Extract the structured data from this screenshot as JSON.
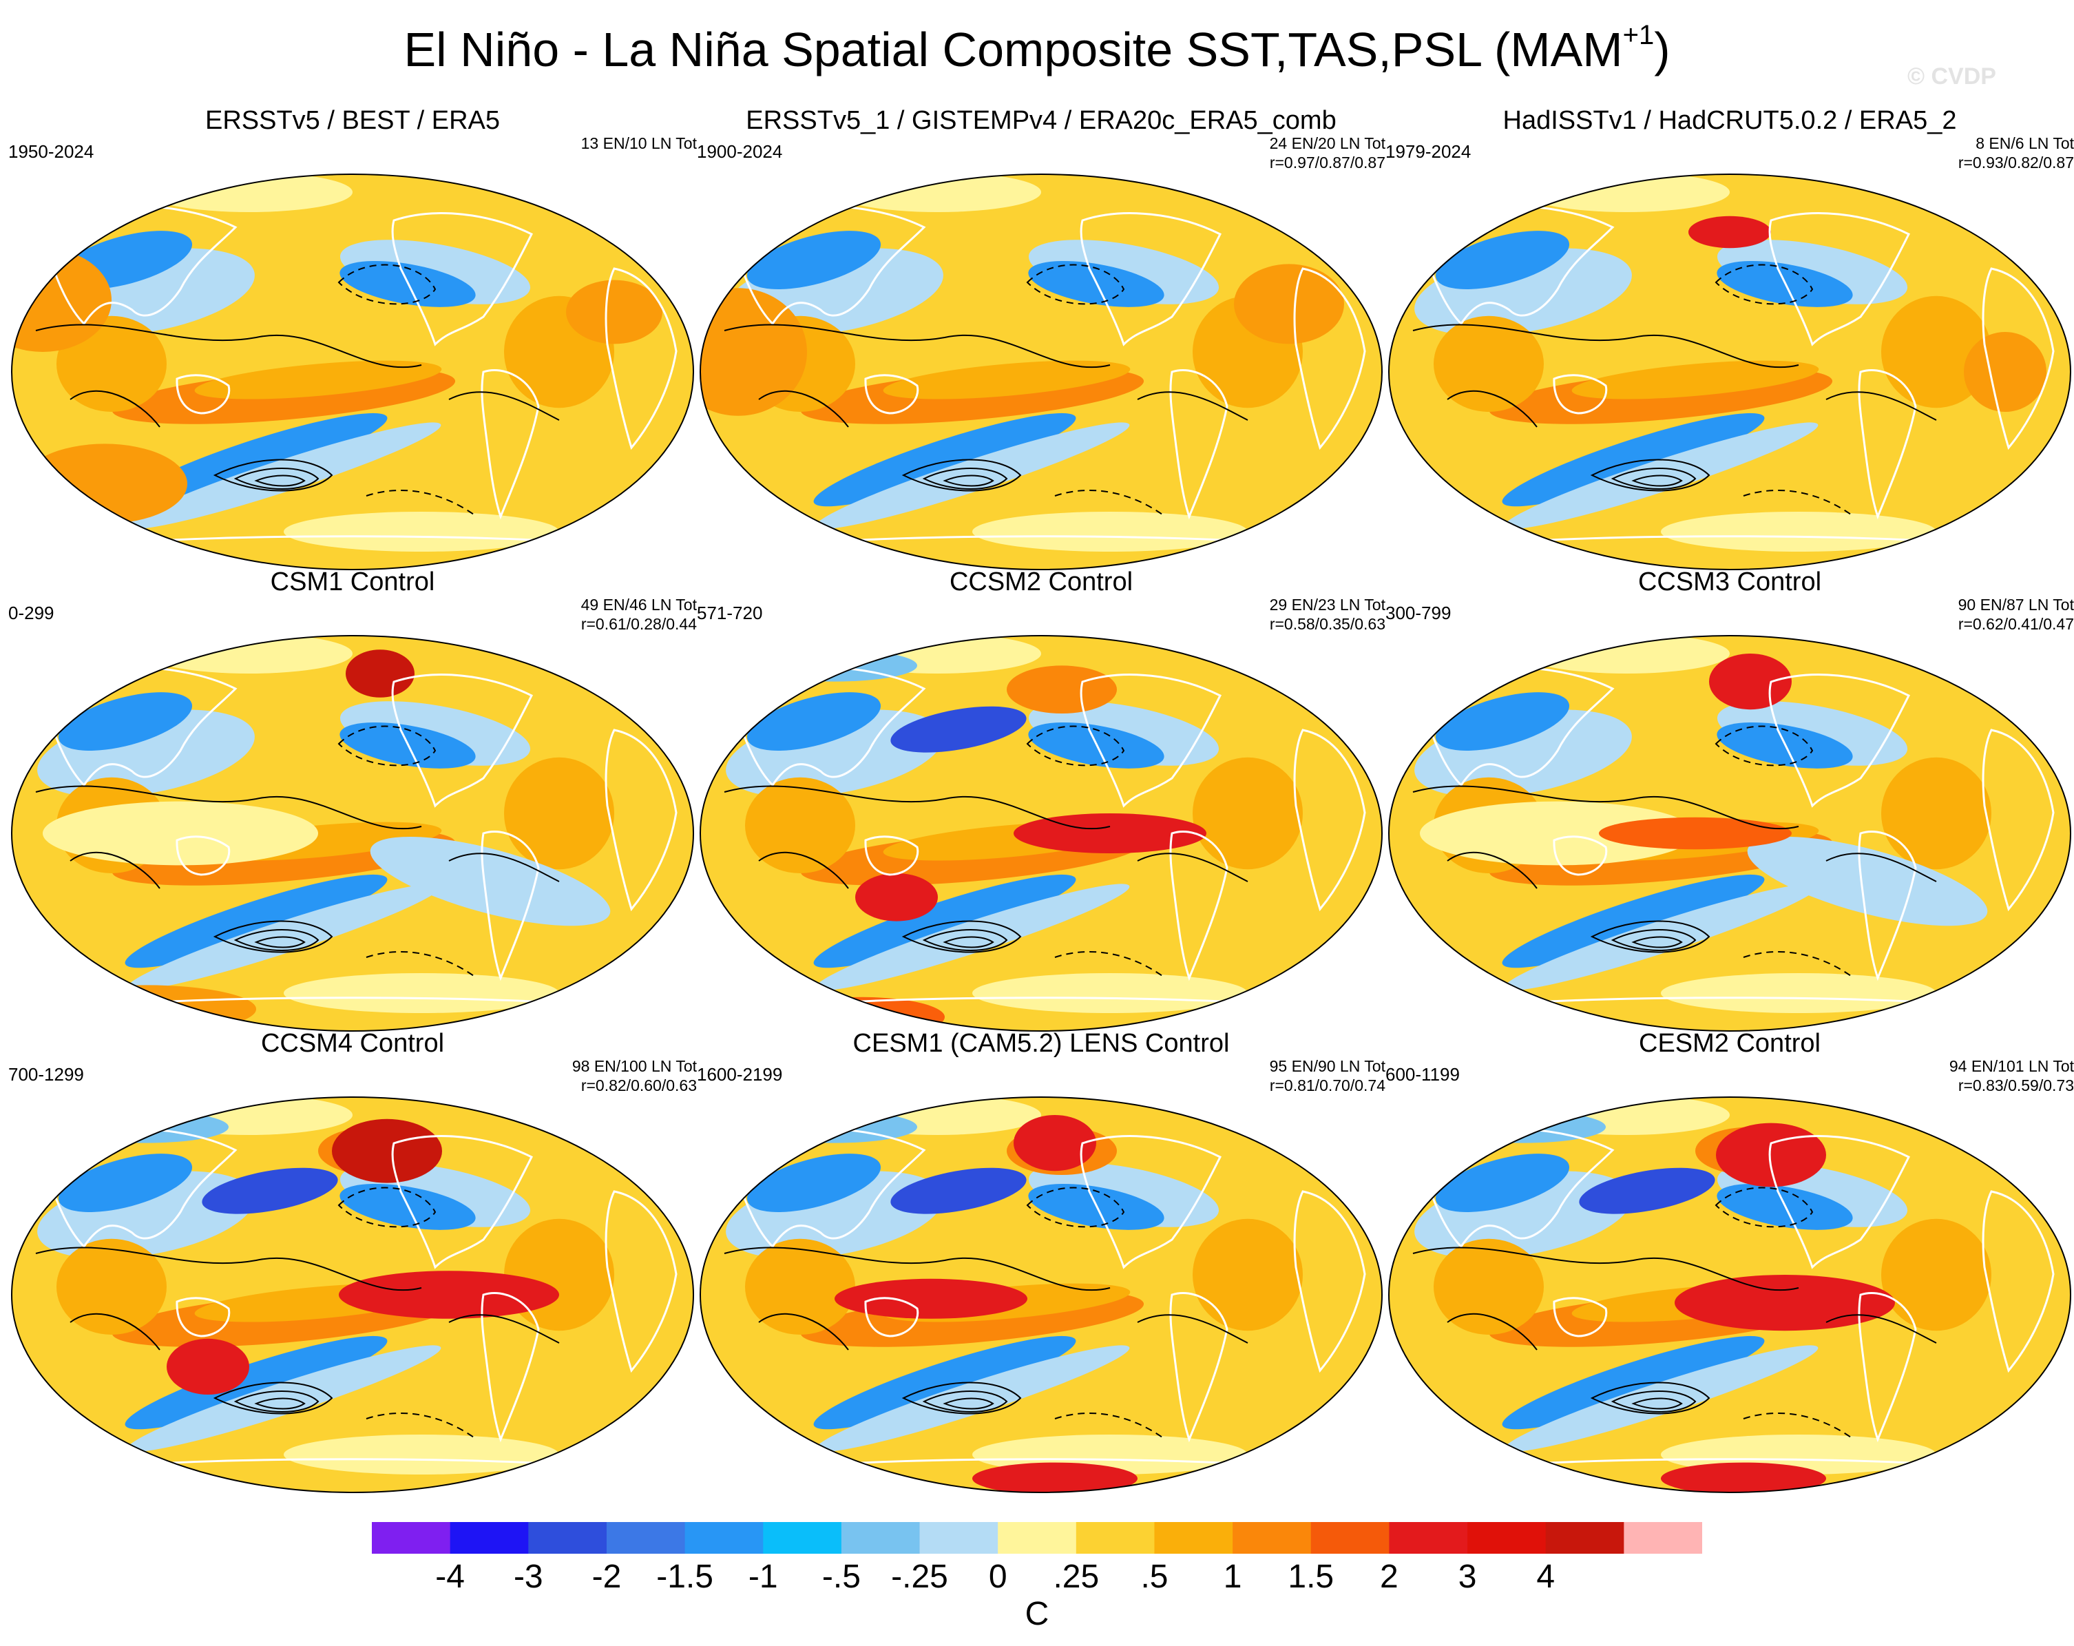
{
  "figure": {
    "title_main": "El Niño - La Niña Spatial Composite SST,TAS,PSL (MAM",
    "title_sup": "+1",
    "title_close": ")",
    "watermark": "© CVDP"
  },
  "panels": [
    {
      "title": "ERSSTv5 / BEST / ERA5",
      "years": "1950-2024",
      "count": "13 EN/10 LN Tot",
      "corr": "",
      "pattern": "obs",
      "warm_anchors": [
        [
          0.05,
          0.32,
          0.1,
          0.13,
          "#fa9b0a"
        ],
        [
          0.14,
          0.78,
          0.12,
          0.1,
          "#fa9b0a"
        ],
        [
          0.88,
          0.35,
          0.07,
          0.08,
          "#fa9b0a"
        ]
      ]
    },
    {
      "title": "ERSSTv5_1 / GISTEMPv4 / ERA20c_ERA5_comb",
      "years": "1900-2024",
      "count": "24 EN/20 LN Tot",
      "corr": "r=0.97/0.87/0.87",
      "pattern": "obs",
      "warm_anchors": [
        [
          0.06,
          0.45,
          0.1,
          0.16,
          "#fa9b0a"
        ],
        [
          0.86,
          0.33,
          0.08,
          0.1,
          "#fa9b0a"
        ]
      ]
    },
    {
      "title": "HadISSTv1 / HadCRUT5.0.2 / ERA5_2",
      "years": "1979-2024",
      "count": "8 EN/6 LN Tot",
      "corr": "r=0.93/0.82/0.87",
      "pattern": "obs",
      "warm_anchors": [
        [
          0.5,
          0.15,
          0.06,
          0.04,
          "#e31a1c"
        ],
        [
          0.9,
          0.5,
          0.06,
          0.1,
          "#fa9b0a"
        ]
      ]
    },
    {
      "title": "CSM1 Control",
      "years": "0-299",
      "count": "49 EN/46 LN Tot",
      "corr": "r=0.61/0.28/0.44",
      "pattern": "weak",
      "warm_anchors": [
        [
          0.54,
          0.1,
          0.05,
          0.06,
          "#c8170c"
        ],
        [
          0.2,
          0.94,
          0.16,
          0.06,
          "#fa9b0a"
        ]
      ]
    },
    {
      "title": "CCSM2 Control",
      "years": "571-720",
      "count": "29 EN/23 LN Tot",
      "corr": "r=0.58/0.35/0.63",
      "pattern": "model",
      "warm_anchors": [
        [
          0.29,
          0.66,
          0.06,
          0.06,
          "#e31a1c"
        ],
        [
          0.6,
          0.5,
          0.14,
          0.05,
          "#e31a1c"
        ],
        [
          0.24,
          0.96,
          0.12,
          0.05,
          "#fa5f0a"
        ]
      ]
    },
    {
      "title": "CCSM3 Control",
      "years": "300-799",
      "count": "90 EN/87 LN Tot",
      "corr": "r=0.62/0.41/0.47",
      "pattern": "weak",
      "warm_anchors": [
        [
          0.53,
          0.12,
          0.06,
          0.07,
          "#e31a1c"
        ],
        [
          0.45,
          0.5,
          0.14,
          0.04,
          "#fa5f0a"
        ]
      ]
    },
    {
      "title": "CCSM4 Control",
      "years": "700-1299",
      "count": "98 EN/100 LN Tot",
      "corr": "r=0.82/0.60/0.63",
      "pattern": "model",
      "warm_anchors": [
        [
          0.55,
          0.14,
          0.08,
          0.08,
          "#c8170c"
        ],
        [
          0.29,
          0.68,
          0.06,
          0.07,
          "#e31a1c"
        ],
        [
          0.64,
          0.5,
          0.16,
          0.06,
          "#e31a1c"
        ]
      ]
    },
    {
      "title": "CESM1 (CAM5.2) LENS Control",
      "years": "1600-2199",
      "count": "95 EN/90 LN Tot",
      "corr": "r=0.81/0.70/0.74",
      "pattern": "model",
      "warm_anchors": [
        [
          0.52,
          0.12,
          0.06,
          0.07,
          "#e31a1c"
        ],
        [
          0.34,
          0.51,
          0.14,
          0.05,
          "#e31a1c"
        ],
        [
          0.52,
          0.96,
          0.12,
          0.04,
          "#e31a1c"
        ]
      ]
    },
    {
      "title": "CESM2 Control",
      "years": "600-1199",
      "count": "94 EN/101 LN Tot",
      "corr": "r=0.83/0.59/0.73",
      "pattern": "model",
      "warm_anchors": [
        [
          0.56,
          0.15,
          0.08,
          0.08,
          "#e31a1c"
        ],
        [
          0.58,
          0.52,
          0.16,
          0.07,
          "#e31a1c"
        ],
        [
          0.52,
          0.96,
          0.12,
          0.04,
          "#e31a1c"
        ]
      ]
    }
  ],
  "colorbar": {
    "colors": [
      "#7f1ff0",
      "#1e14f5",
      "#2e4edc",
      "#3c78e6",
      "#2896f5",
      "#0abefa",
      "#78c3f0",
      "#b4dcf5",
      "#fff59b",
      "#fcd232",
      "#faaf0a",
      "#fa870a",
      "#f55a0a",
      "#e31a1c",
      "#e01109",
      "#c8170c",
      "#ffb4b4"
    ],
    "labels": [
      "-4",
      "-3",
      "-2",
      "-1.5",
      "-1",
      "-.5",
      "-.25",
      "0",
      ".25",
      ".5",
      "1",
      "1.5",
      "2",
      "3",
      "4"
    ],
    "unit": "C"
  },
  "map_palette": {
    "land_outline": "#ffffff",
    "border": "#000000",
    "base": "#fcd232",
    "light_yellow": "#fff59b",
    "light_blue": "#b4dcf5",
    "mid_blue": "#78c3f0",
    "blue": "#2896f5",
    "dark_blue": "#2e4edc",
    "orange": "#faaf0a",
    "dark_orange": "#fa870a",
    "red": "#e31a1c",
    "contour": "#000000"
  }
}
